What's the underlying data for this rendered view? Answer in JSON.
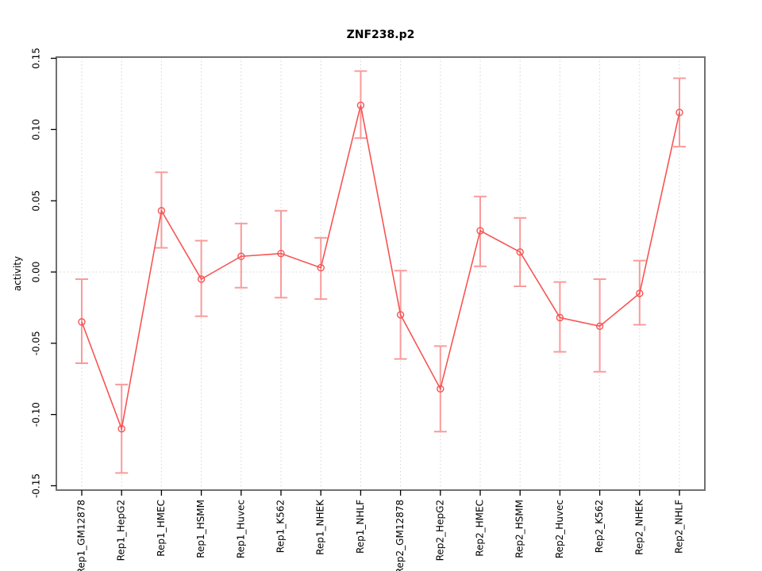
{
  "chart_data": {
    "type": "line",
    "title": "ZNF238.p2",
    "ylabel": "activity",
    "xlabel": "",
    "ylim": [
      -0.15,
      0.15
    ],
    "yticks": [
      0.15,
      0.1,
      0.05,
      0.0,
      -0.05,
      -0.1,
      -0.15
    ],
    "grid": {
      "vertical": "dotted line at every category",
      "horizontal": "dotted line at 0 only"
    },
    "legend_position": "none",
    "point_style": "open-circle",
    "series_color": "#f65454",
    "errorbar_color": "#f99b9b",
    "gridline_color": "#d4d4d4",
    "box_color": "#707070",
    "categories": [
      "Rep1_GM12878",
      "Rep1_HepG2",
      "Rep1_HMEC",
      "Rep1_HSMM",
      "Rep1_Huvec",
      "Rep1_K562",
      "Rep1_NHEK",
      "Rep1_NHLF",
      "Rep2_GM12878",
      "Rep2_HepG2",
      "Rep2_HMEC",
      "Rep2_HSMM",
      "Rep2_Huvec",
      "Rep2_K562",
      "Rep2_NHEK",
      "Rep2_NHLF"
    ],
    "series": [
      {
        "name": "activity",
        "values": [
          -0.035,
          -0.11,
          0.043,
          -0.005,
          0.011,
          0.013,
          0.003,
          0.117,
          -0.03,
          -0.082,
          0.029,
          0.014,
          -0.032,
          -0.038,
          -0.015,
          0.112
        ],
        "error_low": [
          -0.064,
          -0.141,
          0.017,
          -0.031,
          -0.011,
          -0.018,
          -0.019,
          0.094,
          -0.061,
          -0.112,
          0.004,
          -0.01,
          -0.056,
          -0.07,
          -0.037,
          0.088
        ],
        "error_high": [
          -0.005,
          -0.079,
          0.07,
          0.022,
          0.034,
          0.043,
          0.024,
          0.141,
          0.001,
          -0.052,
          0.053,
          0.038,
          -0.007,
          -0.005,
          0.008,
          0.136
        ]
      }
    ]
  }
}
